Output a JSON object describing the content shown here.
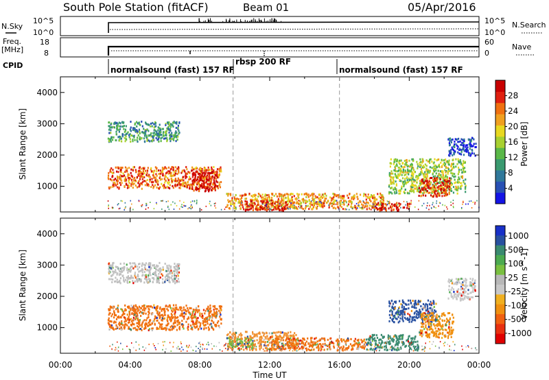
{
  "header": {
    "title": "South Pole Station (fitACF)",
    "beam": "Beam 01",
    "date": "05/Apr/2016"
  },
  "top_panels": {
    "nsky": {
      "left_label": "N.Sky",
      "right_label": "N.Search",
      "left_ticks": [
        "10^5",
        "10^0"
      ],
      "right_ticks": [
        "10^5",
        "10^0"
      ]
    },
    "freq": {
      "left_label_1": "Freq.",
      "left_label_2": "[MHz]",
      "right_label": "Nave",
      "left_ticks": [
        "18",
        "8"
      ],
      "right_ticks": [
        "60",
        "0"
      ]
    },
    "cpid": {
      "label": "CPID",
      "modes": [
        {
          "name": "normalsound (fast) 157 RF",
          "start_hour": 2.7,
          "end_hour": 9.9
        },
        {
          "name": "rbsp 200 RF",
          "start_hour": 9.9,
          "end_hour": 16.0
        },
        {
          "name": "normalsound (fast) 157 RF",
          "start_hour": 16.0,
          "end_hour": 24.0
        }
      ]
    }
  },
  "chart_data": [
    {
      "type": "heatmap",
      "quantity": "power",
      "ylabel": "Slant Range [km]",
      "ylim": [
        180,
        4500
      ],
      "yticks": [
        1000,
        2000,
        3000,
        4000
      ],
      "xlim": [
        0,
        24
      ],
      "data_start_hour": 2.7,
      "colorbar": {
        "label": "Power [dB]",
        "ticks": [
          "4",
          "8",
          "12",
          "16",
          "20",
          "24",
          "28"
        ],
        "colors": [
          "#1414e6",
          "#2850b4",
          "#30789a",
          "#3a9a70",
          "#5ab848",
          "#a8d030",
          "#e8d820",
          "#f0a020",
          "#f07010",
          "#e02010",
          "#c80000"
        ]
      },
      "regions": [
        {
          "h0": 2.7,
          "h1": 6.8,
          "r0": 2450,
          "r1": 3100,
          "level": 3
        },
        {
          "h0": 2.7,
          "h1": 9.2,
          "r0": 950,
          "r1": 1650,
          "level": 8
        },
        {
          "h0": 7.5,
          "h1": 9.0,
          "r0": 850,
          "r1": 1500,
          "level": 10
        },
        {
          "h0": 9.5,
          "h1": 18.5,
          "r0": 300,
          "r1": 800,
          "level": 7
        },
        {
          "h0": 10.5,
          "h1": 13.0,
          "r0": 250,
          "r1": 600,
          "level": 9
        },
        {
          "h0": 17.8,
          "h1": 20.0,
          "r0": 250,
          "r1": 500,
          "level": 9
        },
        {
          "h0": 18.8,
          "h1": 23.2,
          "r0": 800,
          "r1": 1900,
          "level": 5
        },
        {
          "h0": 20.5,
          "h1": 22.3,
          "r0": 700,
          "r1": 1300,
          "level": 9
        },
        {
          "h0": 22.2,
          "h1": 23.8,
          "r0": 2000,
          "r1": 2600,
          "level": 1
        }
      ]
    },
    {
      "type": "heatmap",
      "quantity": "velocity",
      "xlabel": "Time UT",
      "ylabel": "Slant Range [km]",
      "ylim": [
        180,
        4500
      ],
      "yticks": [
        1000,
        2000,
        3000,
        4000
      ],
      "xlim": [
        0,
        24
      ],
      "xticks": [
        "00:00",
        "04:00",
        "08:00",
        "12:00",
        "16:00",
        "20:00",
        "00:00"
      ],
      "colorbar": {
        "label": "Velocity [m s^-1]",
        "ticks": [
          "1000",
          "500",
          "100",
          "25",
          "-25",
          "-100",
          "-500",
          "-1000"
        ],
        "colors": [
          "#1830c8",
          "#2850a0",
          "#3a8a70",
          "#4caa50",
          "#7ac040",
          "#b8b8b8",
          "#c8c8c8",
          "#f0b020",
          "#f09010",
          "#f06010",
          "#e83010",
          "#e00000"
        ]
      },
      "regions": [
        {
          "h0": 2.7,
          "h1": 6.8,
          "r0": 2450,
          "r1": 3100,
          "color": "#c0c0c0"
        },
        {
          "h0": 2.7,
          "h1": 9.2,
          "r0": 950,
          "r1": 1750,
          "color": "#f07010"
        },
        {
          "h0": 9.5,
          "h1": 13.5,
          "r0": 300,
          "r1": 900,
          "color": "#f09030"
        },
        {
          "h0": 12.0,
          "h1": 17.5,
          "r0": 300,
          "r1": 700,
          "color": "#f07010"
        },
        {
          "h0": 9.6,
          "h1": 11.0,
          "r0": 400,
          "r1": 700,
          "color": "#70b840"
        },
        {
          "h0": 17.5,
          "h1": 20.5,
          "r0": 300,
          "r1": 800,
          "color": "#3a8a70"
        },
        {
          "h0": 18.8,
          "h1": 21.5,
          "r0": 1200,
          "r1": 1900,
          "color": "#2850a0"
        },
        {
          "h0": 20.5,
          "h1": 22.5,
          "r0": 700,
          "r1": 1500,
          "color": "#f09010"
        },
        {
          "h0": 22.2,
          "h1": 23.8,
          "r0": 1900,
          "r1": 2600,
          "color": "#c8c8c8"
        }
      ]
    }
  ],
  "axis": {
    "xticks": [
      "00:00",
      "04:00",
      "08:00",
      "12:00",
      "16:00",
      "20:00",
      "00:00"
    ],
    "xlabel": "Time UT"
  }
}
